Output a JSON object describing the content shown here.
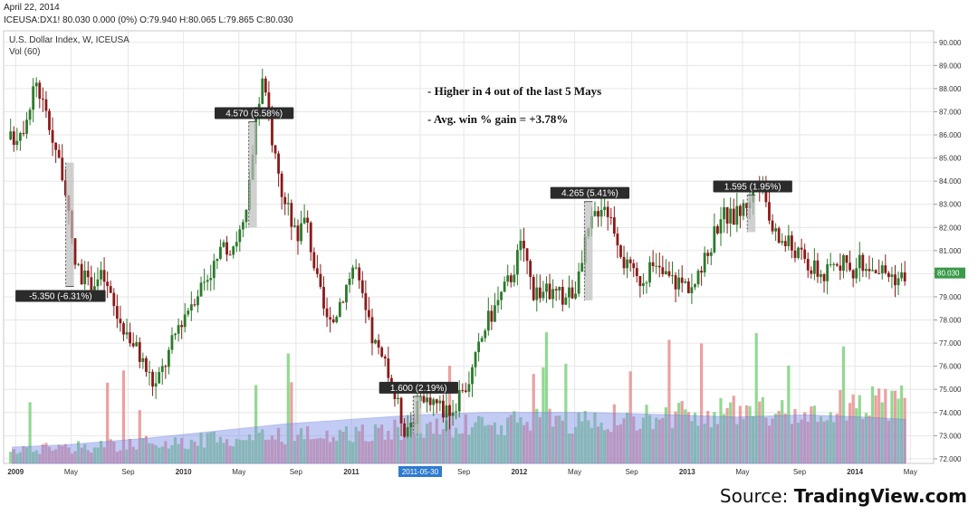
{
  "header": {
    "date": "April 22, 2014",
    "ticker_line": "ICEUSA:DX1! 80.030 0.000 (0%) O:79.940 H:80.065 L:79.865 C:80.030"
  },
  "chart_data": {
    "type": "candlestick",
    "title": "U.S. Dollar Index, W, ICEUSA",
    "volume_label": "Vol (60)",
    "y_range": [
      71.8,
      90.5
    ],
    "y_ticks": [
      "72.000",
      "73.000",
      "74.000",
      "75.000",
      "76.000",
      "77.000",
      "78.000",
      "79.000",
      "80.000",
      "81.000",
      "82.000",
      "83.000",
      "84.000",
      "85.000",
      "86.000",
      "87.000",
      "88.000",
      "89.000",
      "90.000"
    ],
    "x_ticks": [
      "2009",
      "May",
      "Sep",
      "2010",
      "May",
      "Sep",
      "2011",
      "2011-05-30",
      "Sep",
      "2012",
      "May",
      "Sep",
      "2013",
      "May",
      "Sep",
      "2014",
      "May"
    ],
    "highlighted_x_tick": "2011-05-30",
    "last_price_label": "80.030",
    "grid": true,
    "annotations": [
      "- Higher in 4 out of the last 5 Mays",
      "-  Avg. win % gain = +3.78%"
    ],
    "measurements": [
      {
        "label": "-5.350 (-6.31%)",
        "from": 84.8,
        "to": 79.45
      },
      {
        "label": "4.570 (5.58%)",
        "from": 82.0,
        "to": 86.57
      },
      {
        "label": "1.600 (2.19%)",
        "from": 73.1,
        "to": 74.7
      },
      {
        "label": "4.265 (5.41%)",
        "from": 78.85,
        "to": 83.12
      },
      {
        "label": "1.595 (1.95%)",
        "from": 81.8,
        "to": 83.4
      }
    ],
    "price_path": [
      [
        2008.98,
        85.8
      ],
      [
        2009.05,
        86.5
      ],
      [
        2009.12,
        88.4
      ],
      [
        2009.2,
        86.4
      ],
      [
        2009.27,
        84.7
      ],
      [
        2009.35,
        80.5
      ],
      [
        2009.43,
        79.5
      ],
      [
        2009.52,
        79.9
      ],
      [
        2009.6,
        78.2
      ],
      [
        2009.68,
        77.3
      ],
      [
        2009.75,
        76.3
      ],
      [
        2009.83,
        75.1
      ],
      [
        2009.9,
        76.3
      ],
      [
        2009.97,
        77.8
      ],
      [
        2010.05,
        78.9
      ],
      [
        2010.13,
        79.8
      ],
      [
        2010.22,
        80.8
      ],
      [
        2010.3,
        81.4
      ],
      [
        2010.37,
        82.2
      ],
      [
        2010.43,
        86.5
      ],
      [
        2010.47,
        88.3
      ],
      [
        2010.52,
        86.2
      ],
      [
        2010.6,
        83.0
      ],
      [
        2010.68,
        81.8
      ],
      [
        2010.73,
        82.4
      ],
      [
        2010.8,
        79.5
      ],
      [
        2010.87,
        77.5
      ],
      [
        2010.93,
        78.8
      ],
      [
        2011.02,
        80.5
      ],
      [
        2011.05,
        79.3
      ],
      [
        2011.12,
        77.3
      ],
      [
        2011.22,
        75.6
      ],
      [
        2011.32,
        73.3
      ],
      [
        2011.4,
        74.2
      ],
      [
        2011.47,
        74.7
      ],
      [
        2011.55,
        74.1
      ],
      [
        2011.63,
        74.3
      ],
      [
        2011.72,
        75.8
      ],
      [
        2011.8,
        77.8
      ],
      [
        2011.88,
        78.9
      ],
      [
        2011.95,
        79.9
      ],
      [
        2012.02,
        81.4
      ],
      [
        2012.08,
        79.3
      ],
      [
        2012.17,
        79.2
      ],
      [
        2012.27,
        79.0
      ],
      [
        2012.35,
        79.5
      ],
      [
        2012.4,
        81.5
      ],
      [
        2012.45,
        82.6
      ],
      [
        2012.5,
        83.2
      ],
      [
        2012.57,
        82.0
      ],
      [
        2012.63,
        80.4
      ],
      [
        2012.7,
        79.7
      ],
      [
        2012.8,
        80.2
      ],
      [
        2012.9,
        79.8
      ],
      [
        2012.97,
        79.6
      ],
      [
        2013.05,
        79.5
      ],
      [
        2013.12,
        80.8
      ],
      [
        2013.2,
        82.6
      ],
      [
        2013.27,
        82.4
      ],
      [
        2013.35,
        83.0
      ],
      [
        2013.42,
        84.0
      ],
      [
        2013.48,
        82.5
      ],
      [
        2013.53,
        81.6
      ],
      [
        2013.58,
        81.4
      ],
      [
        2013.65,
        81.0
      ],
      [
        2013.73,
        80.3
      ],
      [
        2013.82,
        79.9
      ],
      [
        2013.9,
        80.6
      ],
      [
        2013.97,
        80.1
      ],
      [
        2014.05,
        80.5
      ],
      [
        2014.12,
        80.3
      ],
      [
        2014.2,
        80.0
      ],
      [
        2014.27,
        79.8
      ],
      [
        2014.3,
        80.03
      ]
    ],
    "volume_average_path": [
      [
        2008.98,
        72.5
      ],
      [
        2009.3,
        72.6
      ],
      [
        2009.8,
        72.9
      ],
      [
        2010.2,
        73.2
      ],
      [
        2010.6,
        73.5
      ],
      [
        2011.0,
        73.7
      ],
      [
        2011.4,
        73.9
      ],
      [
        2011.8,
        74.0
      ],
      [
        2012.4,
        74.0
      ],
      [
        2012.9,
        73.9
      ],
      [
        2013.3,
        73.8
      ],
      [
        2013.7,
        73.9
      ],
      [
        2014.05,
        73.8
      ],
      [
        2014.3,
        73.7
      ]
    ]
  },
  "footer": {
    "source_prefix": "Source: ",
    "source_name": "TradingView.com"
  },
  "colors": {
    "up": "#2c7a2c",
    "down": "#8b1a1a",
    "volume_up": "#7fd27f",
    "volume_down": "#e89090",
    "volume_avg": "#7a8de8",
    "grid": "#e6e6e6",
    "label_bg": "#2b2b2b",
    "last_price_bg": "#3a9a4a",
    "highlight_tick_bg": "#2e7bd0"
  }
}
